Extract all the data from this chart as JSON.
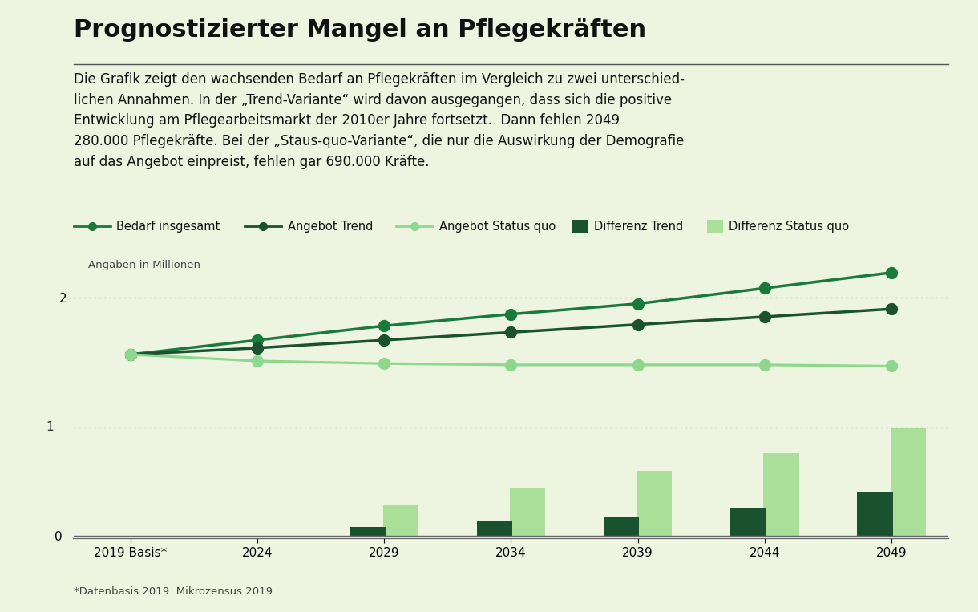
{
  "title": "Prognostizierter Mangel an Pflegekräften",
  "description": "Die Grafik zeigt den wachsenden Bedarf an Pflegekräften im Vergleich zu zwei unterschied-\nlichen Annahmen. In der „Trend-Variante“ wird davon ausgegangen, dass sich die positive\nEntwicklung am Pflegearbeitsmarkt der 2010er Jahre fortsetzt.  Dann fehlen 2049\n280.000 Pflegekräfte. Bei der „Staus-quo-Variante“, die nur die Auswirkung der Demografie\nauf das Angebot einpreist, fehlen gar 690.000 Kräfte.",
  "footnote": "*Datenbasis 2019: Mikrozensus 2019",
  "years": [
    2019,
    2024,
    2029,
    2034,
    2039,
    2044,
    2049
  ],
  "x_labels": [
    "2019 Basis*",
    "2024",
    "2029",
    "2034",
    "2039",
    "2044",
    "2049"
  ],
  "bedarf": [
    1.56,
    1.67,
    1.78,
    1.87,
    1.95,
    2.07,
    2.19
  ],
  "angebot_trend": [
    1.56,
    1.61,
    1.67,
    1.73,
    1.79,
    1.85,
    1.91
  ],
  "angebot_status_quo": [
    1.56,
    1.51,
    1.49,
    1.48,
    1.48,
    1.48,
    1.47
  ],
  "differenz_trend": [
    0.0,
    0.0,
    0.055,
    0.09,
    0.12,
    0.175,
    0.28
  ],
  "differenz_status_quo": [
    0.0,
    0.0,
    0.19,
    0.3,
    0.41,
    0.525,
    0.69
  ],
  "color_bedarf": "#1a7a3c",
  "color_angebot_trend": "#1a5230",
  "color_angebot_status_quo": "#8ed88e",
  "color_diff_trend": "#1a5230",
  "color_diff_status_quo": "#aadf9a",
  "bg": "#edf5e1",
  "title_fontsize": 22,
  "desc_fontsize": 12,
  "legend_fontsize": 10.5,
  "axis_fontsize": 11
}
